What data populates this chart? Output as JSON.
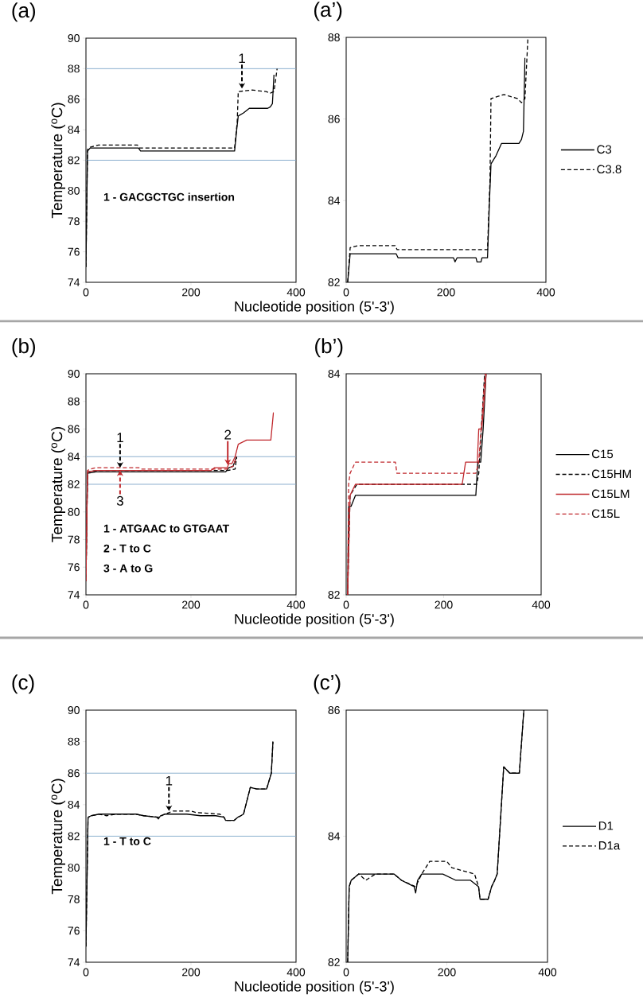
{
  "chart_data": [
    {
      "type": "line",
      "title": "(a)",
      "xlabel": "Nucleotide position (5'-3')",
      "ylabel": "Temperature ($^{o}$C)",
      "xlim": [
        0,
        400
      ],
      "xticks": [
        0,
        200,
        400
      ],
      "ylim": [
        74,
        90
      ],
      "yticks": [
        74,
        76,
        78,
        80,
        82,
        84,
        86,
        88,
        90
      ],
      "ref_lines": [
        {
          "axis": "y",
          "value": 88,
          "color": "#7ea6c8"
        },
        {
          "axis": "y",
          "value": 82,
          "color": "#7ea6c8"
        }
      ],
      "annotations": [
        {
          "text": "1",
          "x": 297,
          "y": 86.7
        },
        "1 - GACGCTGC insertion"
      ],
      "series": [
        {
          "color": "#000000",
          "line_style": "solid",
          "x": [
            0,
            3,
            8,
            100,
            104,
            283,
            287,
            290,
            300,
            311,
            346,
            351,
            355,
            358
          ],
          "values": [
            75,
            82.6,
            82.8,
            82.8,
            82.6,
            82.6,
            84.0,
            84.9,
            85.1,
            85.4,
            85.4,
            85.5,
            85.7,
            87.6
          ]
        },
        {
          "color": "#000000",
          "line_style": "dashed",
          "x": [
            0,
            3,
            8,
            24,
            98,
            102,
            283,
            288,
            290,
            316,
            343,
            351,
            358,
            364
          ],
          "values": [
            75,
            82.7,
            82.85,
            83.0,
            83.0,
            82.8,
            82.8,
            84.5,
            86.5,
            86.6,
            86.5,
            86.4,
            86.5,
            88
          ]
        }
      ]
    },
    {
      "type": "line",
      "title": "(a’)",
      "xlim": [
        0,
        400
      ],
      "xticks": [
        0,
        200,
        400
      ],
      "ylim": [
        82,
        88
      ],
      "yticks": [
        82,
        84,
        86,
        88
      ],
      "legend": "right",
      "series": [
        {
          "name": "C3",
          "color": "#000000",
          "line_style": "solid",
          "x": [
            3,
            8,
            100,
            104,
            215,
            218,
            222,
            260,
            262,
            270,
            272,
            283,
            287,
            290,
            300,
            311,
            346,
            351,
            355,
            358
          ],
          "values": [
            82,
            82.7,
            82.7,
            82.6,
            82.6,
            82.5,
            82.6,
            82.6,
            82.5,
            82.5,
            82.6,
            82.6,
            84.0,
            84.9,
            85.1,
            85.4,
            85.4,
            85.5,
            85.7,
            87.5
          ]
        },
        {
          "name": "C3.8",
          "color": "#000000",
          "line_style": "dashed",
          "x": [
            3,
            8,
            24,
            98,
            102,
            271,
            283,
            288,
            290,
            316,
            343,
            351,
            358,
            364
          ],
          "values": [
            82,
            82.85,
            82.9,
            82.9,
            82.8,
            82.8,
            82.8,
            84.5,
            86.5,
            86.6,
            86.5,
            86.4,
            86.5,
            88
          ]
        }
      ]
    },
    {
      "type": "line",
      "title": "(b)",
      "xlabel": "Nucleotide position (5'-3')",
      "ylabel": "Temperature ($^{o}$C)",
      "xlim": [
        0,
        400
      ],
      "xticks": [
        0,
        200,
        400
      ],
      "ylim": [
        74,
        90
      ],
      "yticks": [
        74,
        76,
        78,
        80,
        82,
        84,
        86,
        88,
        90
      ],
      "ref_lines": [
        {
          "axis": "y",
          "value": 84,
          "color": "#7ea6c8"
        },
        {
          "axis": "y",
          "value": 82,
          "color": "#7ea6c8"
        }
      ],
      "annotations": [
        {
          "text": "1",
          "x": 65,
          "y": 83.2
        },
        {
          "text": "2",
          "x": 270,
          "y": 83.4
        },
        {
          "text": "3",
          "x": 65,
          "y": 83.0
        },
        "1 - ATGAAC to GTGAAT",
        "2 - T to C",
        "3 - A to G"
      ],
      "series": [
        {
          "color": "#000000",
          "line_style": "solid",
          "x": [
            0,
            3,
            19,
            266,
            272,
            280,
            287
          ],
          "values": [
            75,
            82.8,
            82.9,
            82.9,
            83.2,
            83.3,
            84
          ]
        },
        {
          "color": "#000000",
          "line_style": "dashed",
          "x": [
            0,
            3,
            22,
            270,
            284,
            287
          ],
          "values": [
            75,
            82.9,
            83.0,
            83.0,
            83.1,
            84
          ]
        },
        {
          "color": "#c0282d",
          "line_style": "solid",
          "x": [
            0,
            3,
            19,
            238,
            245,
            269,
            272,
            278,
            284,
            290,
            306,
            352,
            357
          ],
          "values": [
            75,
            82.9,
            83.0,
            83.0,
            83.2,
            83.2,
            83.5,
            83.5,
            84,
            84.9,
            85.2,
            85.2,
            87.2
          ]
        },
        {
          "color": "#c0282d",
          "line_style": "dashed",
          "x": [
            0,
            3,
            8,
            19,
            101,
            104,
            268,
            280,
            287
          ],
          "values": [
            75,
            83.0,
            83.1,
            83.2,
            83.2,
            83.1,
            83.1,
            83.3,
            84
          ]
        }
      ]
    },
    {
      "type": "line",
      "title": "(b’)",
      "xlim": [
        0,
        400
      ],
      "xticks": [
        0,
        200,
        400
      ],
      "ylim": [
        82,
        84
      ],
      "yticks": [
        82,
        84
      ],
      "legend": "right",
      "series": [
        {
          "name": "C15",
          "color": "#000000",
          "line_style": "solid",
          "x": [
            3,
            5,
            10,
            19,
            266,
            270,
            276,
            281,
            287
          ],
          "values": [
            82,
            82.8,
            82.8,
            82.9,
            82.9,
            83.2,
            83.2,
            83.5,
            84
          ]
        },
        {
          "name": "C15HM",
          "color": "#000000",
          "line_style": "dashed",
          "x": [
            3,
            8,
            22,
            268,
            272,
            284
          ],
          "values": [
            82,
            82.9,
            83.0,
            83.0,
            83.1,
            84
          ]
        },
        {
          "name": "C15LM",
          "color": "#c0282d",
          "line_style": "solid",
          "x": [
            3,
            8,
            19,
            238,
            245,
            269,
            272,
            278,
            282,
            287
          ],
          "values": [
            82,
            82.9,
            83.0,
            83.0,
            83.2,
            83.2,
            83.5,
            83.5,
            83.7,
            84
          ]
        },
        {
          "name": "C15L",
          "color": "#c0282d",
          "line_style": "dashed",
          "x": [
            3,
            5,
            8,
            19,
            101,
            104,
            266,
            272,
            285
          ],
          "values": [
            82,
            83.0,
            83.1,
            83.2,
            83.2,
            83.1,
            83.1,
            83.2,
            84
          ]
        }
      ]
    },
    {
      "type": "line",
      "title": "(c)",
      "xlabel": "Nucleotide position (5'-3')",
      "ylabel": "Temperature ($^{o}$C)",
      "xlim": [
        0,
        400
      ],
      "xticks": [
        0,
        200,
        400
      ],
      "ylim": [
        74,
        90
      ],
      "yticks": [
        74,
        76,
        78,
        80,
        82,
        84,
        86,
        88,
        90
      ],
      "ref_lines": [
        {
          "axis": "y",
          "value": 86,
          "color": "#7ea6c8"
        },
        {
          "axis": "y",
          "value": 82,
          "color": "#7ea6c8"
        }
      ],
      "annotations": [
        {
          "text": "1",
          "x": 158,
          "y": 83.6
        },
        "1 - T to C"
      ],
      "series": [
        {
          "color": "#000000",
          "line_style": "solid",
          "x": [
            0,
            4,
            10,
            25,
            95,
            110,
            135,
            138,
            142,
            150,
            192,
            218,
            247,
            263,
            266,
            282,
            289,
            295,
            300,
            313,
            325,
            344,
            353,
            356
          ],
          "values": [
            75,
            83.2,
            83.3,
            83.4,
            83.4,
            83.3,
            83.2,
            83.1,
            83.3,
            83.4,
            83.4,
            83.3,
            83.3,
            83.2,
            83.0,
            83.0,
            83.2,
            83.3,
            83.4,
            85.1,
            85.0,
            85.0,
            86,
            88
          ]
        },
        {
          "color": "#000000",
          "line_style": "dashed",
          "x": [
            0,
            4,
            10,
            25,
            39,
            58,
            95,
            110,
            138,
            150,
            158,
            166,
            200,
            210,
            255,
            263,
            266,
            282,
            289,
            295,
            300,
            313,
            325,
            344,
            353,
            356
          ],
          "values": [
            75,
            83.2,
            83.3,
            83.4,
            83.3,
            83.4,
            83.4,
            83.3,
            83.2,
            83.4,
            83.5,
            83.6,
            83.6,
            83.5,
            83.4,
            83.2,
            83.0,
            83.0,
            83.2,
            83.3,
            83.4,
            85.1,
            85.0,
            85.0,
            86,
            88
          ]
        }
      ]
    },
    {
      "type": "line",
      "title": "(c’)",
      "xlim": [
        0,
        400
      ],
      "xticks": [
        0,
        200,
        400
      ],
      "ylim": [
        82,
        86
      ],
      "yticks": [
        82,
        84,
        86
      ],
      "legend": "right",
      "series": [
        {
          "name": "D1",
          "color": "#000000",
          "line_style": "solid",
          "x": [
            3,
            6,
            10,
            25,
            95,
            110,
            135,
            138,
            142,
            150,
            192,
            218,
            247,
            263,
            266,
            282,
            289,
            295,
            300,
            313,
            325,
            344,
            353
          ],
          "values": [
            82,
            83.2,
            83.3,
            83.4,
            83.4,
            83.3,
            83.2,
            83.1,
            83.3,
            83.4,
            83.4,
            83.3,
            83.3,
            83.2,
            83.0,
            83.0,
            83.2,
            83.3,
            83.4,
            85.1,
            85.0,
            85.0,
            86
          ]
        },
        {
          "name": "D1a",
          "color": "#000000",
          "line_style": "dashed",
          "x": [
            3,
            6,
            10,
            25,
            39,
            58,
            95,
            110,
            138,
            150,
            158,
            166,
            200,
            210,
            255,
            263,
            266,
            282,
            289,
            295,
            300,
            313,
            325,
            344,
            353
          ],
          "values": [
            82,
            83.2,
            83.3,
            83.4,
            83.3,
            83.4,
            83.4,
            83.3,
            83.2,
            83.4,
            83.5,
            83.6,
            83.6,
            83.5,
            83.4,
            83.2,
            83.0,
            83.0,
            83.2,
            83.3,
            83.4,
            85.1,
            85.0,
            85.0,
            86
          ]
        }
      ]
    }
  ]
}
